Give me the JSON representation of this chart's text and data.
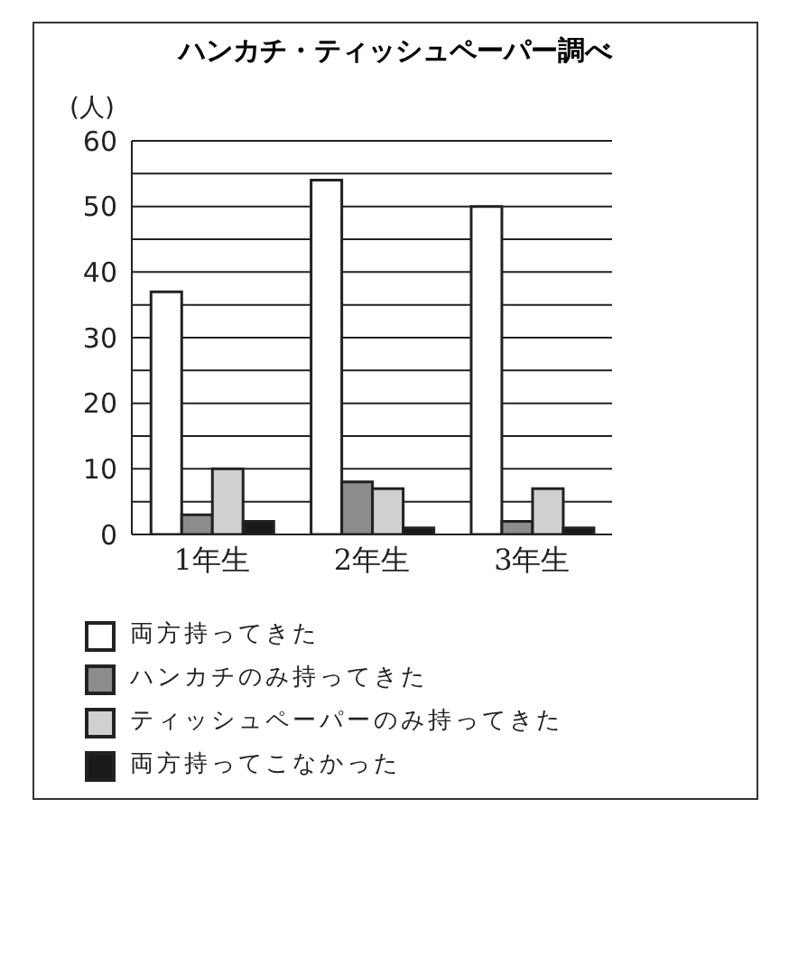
{
  "chart_data": {
    "type": "bar",
    "title": "ハンカチ・ティッシュペーパー調べ",
    "ylabel": "(人)",
    "categories": [
      "1年生",
      "2年生",
      "3年生"
    ],
    "series": [
      {
        "name": "両方持ってきた",
        "color": "#ffffff",
        "values": [
          37,
          54,
          50
        ]
      },
      {
        "name": "ハンカチのみ持ってきた",
        "color": "#8c8c8c",
        "values": [
          3,
          8,
          2
        ]
      },
      {
        "name": "ティッシュペーパーのみ持ってきた",
        "color": "#d0d0d0",
        "values": [
          10,
          7,
          7
        ]
      },
      {
        "name": "両方持ってこなかった",
        "color": "#1a1a1a",
        "values": [
          2,
          1,
          1
        ]
      }
    ],
    "ylim": [
      0,
      60
    ],
    "yticks": [
      0,
      {
        "value": 5,
        "label": null
      },
      10,
      {
        "value": 15,
        "label": null
      },
      20,
      {
        "value": 25,
        "label": null
      },
      30,
      {
        "value": 35,
        "label": null
      },
      40,
      {
        "value": 45,
        "label": null
      },
      50,
      {
        "value": 55,
        "label": null
      },
      60
    ],
    "grid": "y",
    "legend": "bottom"
  }
}
